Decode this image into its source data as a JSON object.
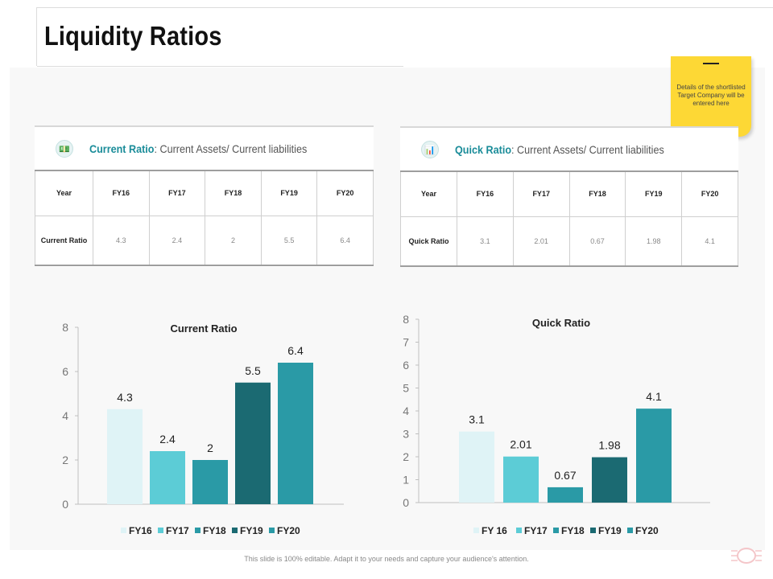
{
  "page": {
    "title": "Liquidity Ratios",
    "footer": "This slide is 100% editable. Adapt it to your needs and capture your audience's attention."
  },
  "note": {
    "text": "Details of the shortlisted Target Company will be entered here"
  },
  "current_table": {
    "heading_bold": "Current Ratio",
    "heading_rest": ": Current Assets/ Current liabilities",
    "icon": "money-icon",
    "header": [
      "Year",
      "FY16",
      "FY17",
      "FY18",
      "FY19",
      "FY20"
    ],
    "row_label": "Current Ratio",
    "values": [
      "4.3",
      "2.4",
      "2",
      "5.5",
      "6.4"
    ]
  },
  "quick_table": {
    "heading_bold": "Quick Ratio",
    "heading_rest": ": Current Assets/ Current liabilities",
    "icon": "bar-chart-icon",
    "header": [
      "Year",
      "FY16",
      "FY17",
      "FY18",
      "FY19",
      "FY20"
    ],
    "row_label": "Quick Ratio",
    "values": [
      "3.1",
      "2.01",
      "0.67",
      "1.98",
      "4.1"
    ]
  },
  "chart_data": [
    {
      "type": "bar",
      "title": "Current Ratio",
      "categories": [
        "FY16",
        "FY17",
        "FY18",
        "FY19",
        "FY20"
      ],
      "legend": [
        "FY16",
        "FY17",
        "FY18",
        "FY19",
        "FY20"
      ],
      "values": [
        4.3,
        2.4,
        2,
        5.5,
        6.4
      ],
      "labels": [
        "4.3",
        "2.4",
        "2",
        "5.5",
        "6.4"
      ],
      "colors": [
        "#dff3f6",
        "#5cccd6",
        "#2a9aa6",
        "#1b6a72",
        "#2a9aa6"
      ],
      "yticks": [
        "0",
        "2",
        "4",
        "6",
        "8"
      ],
      "ylim": [
        0,
        8
      ],
      "xlabel": "",
      "ylabel": ""
    },
    {
      "type": "bar",
      "title": "Quick Ratio",
      "categories": [
        "FY 16",
        "FY17",
        "FY18",
        "FY19",
        "FY20"
      ],
      "legend": [
        "FY 16",
        "FY17",
        "FY18",
        "FY19",
        "FY20"
      ],
      "values": [
        3.1,
        2.01,
        0.67,
        1.98,
        4.1
      ],
      "labels": [
        "3.1",
        "2.01",
        "0.67",
        "1.98",
        "4.1"
      ],
      "colors": [
        "#dff3f6",
        "#5cccd6",
        "#2a9aa6",
        "#1b6a72",
        "#2a9aa6"
      ],
      "yticks": [
        "0",
        "1",
        "2",
        "3",
        "4",
        "5",
        "6",
        "7",
        "8"
      ],
      "ylim": [
        0,
        8
      ],
      "xlabel": "",
      "ylabel": ""
    }
  ]
}
